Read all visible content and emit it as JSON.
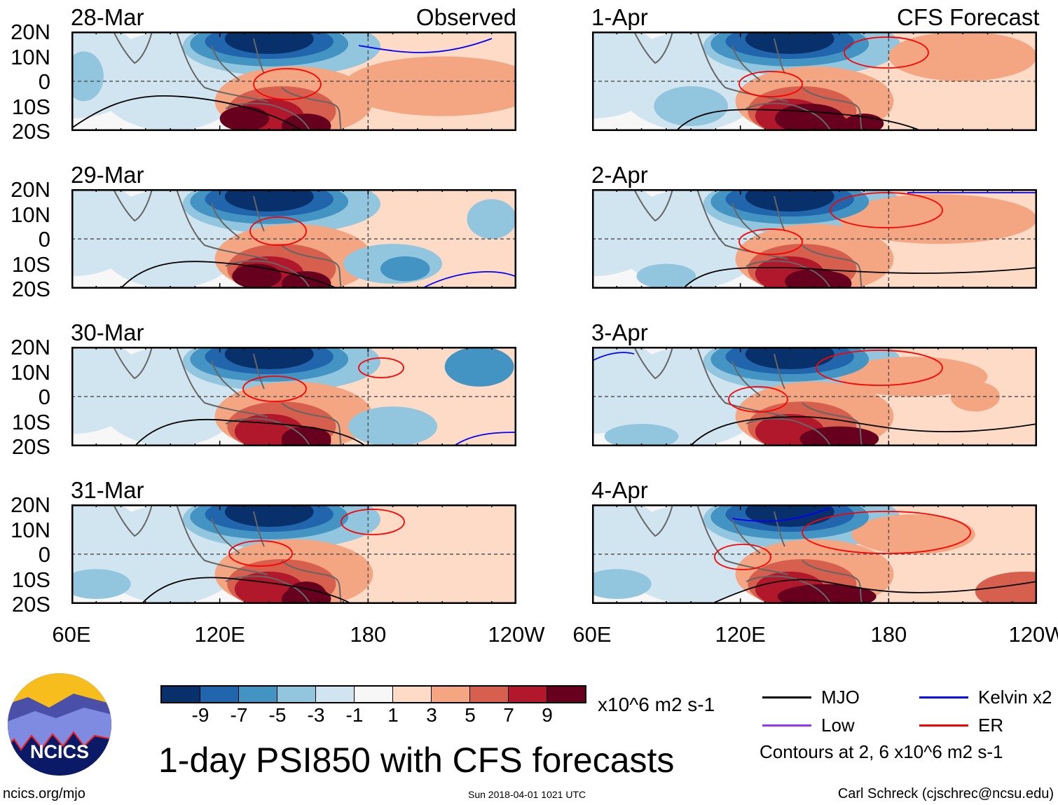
{
  "columns": [
    {
      "header": "Observed"
    },
    {
      "header": "CFS Forecast"
    }
  ],
  "panels": [
    {
      "date": "28-Mar",
      "col": 0,
      "row": 0
    },
    {
      "date": "29-Mar",
      "col": 0,
      "row": 1
    },
    {
      "date": "30-Mar",
      "col": 0,
      "row": 2
    },
    {
      "date": "31-Mar",
      "col": 0,
      "row": 3
    },
    {
      "date": "1-Apr",
      "col": 1,
      "row": 0
    },
    {
      "date": "2-Apr",
      "col": 1,
      "row": 1
    },
    {
      "date": "3-Apr",
      "col": 1,
      "row": 2
    },
    {
      "date": "4-Apr",
      "col": 1,
      "row": 3
    }
  ],
  "lat_labels": [
    "20N",
    "10N",
    "0",
    "10S",
    "20S"
  ],
  "lon_labels": [
    "60E",
    "120E",
    "180",
    "120W"
  ],
  "colorbar": {
    "colors": [
      "#08306b",
      "#2166ac",
      "#4393c3",
      "#92c5de",
      "#d1e5f0",
      "#f7f7f7",
      "#fddbc7",
      "#f4a582",
      "#d6604d",
      "#b2182b",
      "#67001f"
    ],
    "ticks": [
      "-9",
      "-7",
      "-5",
      "-3",
      "-1",
      "1",
      "3",
      "5",
      "7",
      "9"
    ],
    "units": "x10^6 m2 s-1"
  },
  "legend": {
    "items": [
      {
        "label": "MJO",
        "color": "#000000"
      },
      {
        "label": "Kelvin x2",
        "color": "#0000ff"
      },
      {
        "label": "Low",
        "color": "#9933ff"
      },
      {
        "label": "ER",
        "color": "#ff0000"
      }
    ],
    "note": "Contours at 2, 6 x10^6 m2 s-1"
  },
  "title": "1-day PSI850 with CFS forecasts",
  "logo_text": "NCICS",
  "footer": {
    "url": "ncics.org/mjo",
    "timestamp": "Sun 2018-04-01 1021 UTC",
    "author": "Carl Schreck (cjschrec@ncsu.edu)"
  }
}
